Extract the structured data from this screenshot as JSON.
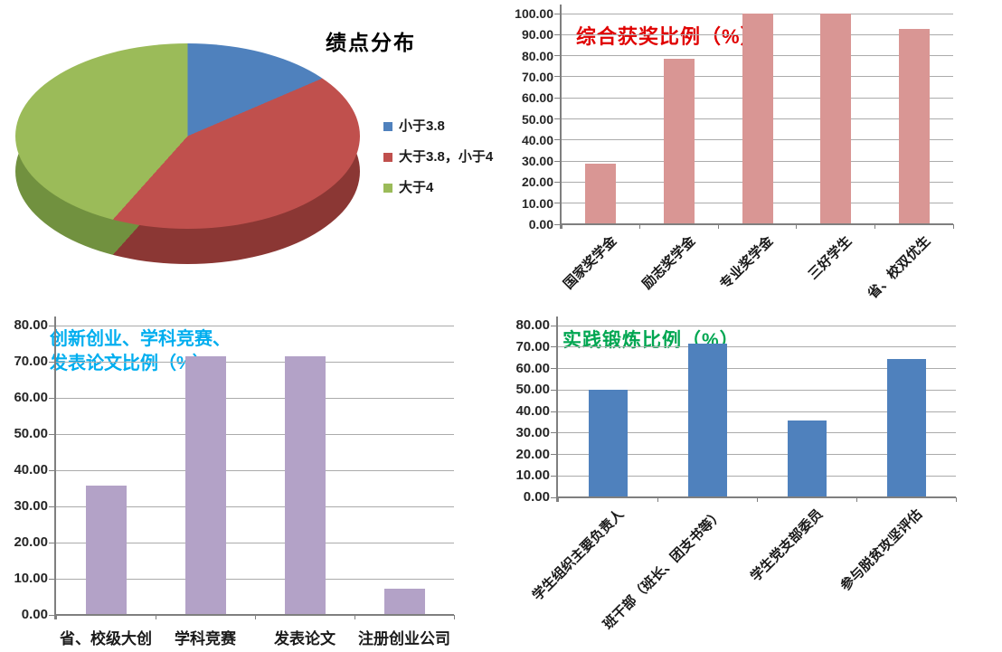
{
  "axis": {
    "grid_color": "#ABABAB",
    "line_color": "#7F7F7F",
    "label_color": "#262626"
  },
  "chart_data": [
    {
      "id": "gpa_pie",
      "type": "pie",
      "title": "绩点分布",
      "title_color": "#000000",
      "legend_position": "right",
      "slices": [
        {
          "label": "小于3.8",
          "value": 14.29,
          "color": "#4F81BD",
          "side_color": "#36598C"
        },
        {
          "label": "大于3.8，小于4",
          "value": 42.86,
          "color": "#C0504D",
          "side_color": "#8B3734"
        },
        {
          "label": "大于4",
          "value": 42.86,
          "color": "#9BBB59",
          "side_color": "#71913F"
        }
      ]
    },
    {
      "id": "award",
      "type": "bar",
      "title": "综合获奖比例（%）",
      "title_color": "#E00000",
      "bar_color": "#D99694",
      "categories": [
        "国家奖学金",
        "励志奖学金",
        "专业奖学金",
        "三好学生",
        "省、校双优生"
      ],
      "values": [
        28.57,
        78.57,
        100.0,
        100.0,
        92.86
      ],
      "ylim": [
        0,
        100
      ],
      "ytick_step": 10,
      "ytick_decimals": 2,
      "x_label_rotation": -45,
      "grid": true
    },
    {
      "id": "innovation",
      "type": "bar",
      "title": "创新创业、学科竞赛、发表论文比例（%）",
      "title_lines": [
        "创新创业、学科竞赛、",
        "发表论文比例（%）"
      ],
      "title_color": "#00AEEF",
      "bar_color": "#B3A2C7",
      "categories": [
        "省、校级大创",
        "学科竞赛",
        "发表论文",
        "注册创业公司"
      ],
      "values": [
        35.71,
        71.43,
        71.43,
        7.14
      ],
      "ylim": [
        0,
        80
      ],
      "ytick_step": 10,
      "ytick_decimals": 2,
      "x_label_rotation": 0,
      "grid": true
    },
    {
      "id": "practice",
      "type": "bar",
      "title": "实践锻炼比例（%）",
      "title_color": "#00A651",
      "bar_color": "#4F81BD",
      "categories": [
        "学生组织主要负责人",
        "班干部（班长、团支书等）",
        "学生党支部委员",
        "参与脱贫攻坚评估"
      ],
      "values": [
        50.0,
        71.43,
        35.71,
        64.29
      ],
      "ylim": [
        0,
        80
      ],
      "ytick_step": 10,
      "ytick_decimals": 2,
      "x_label_rotation": -45,
      "grid": true
    }
  ]
}
